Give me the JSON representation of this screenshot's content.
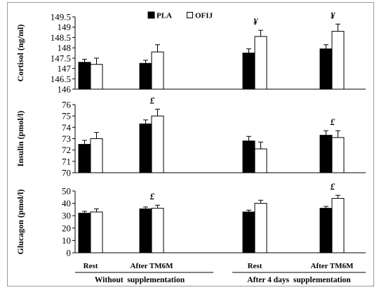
{
  "chart_data": {
    "type": "bar",
    "legend": {
      "placement": "top-center",
      "entries": [
        {
          "name": "PLA",
          "fill": "#000000"
        },
        {
          "name": "OFIJ",
          "fill": "#ffffff"
        }
      ]
    },
    "categories": [
      "Rest",
      "After TM6M",
      "Rest",
      "After TM6M"
    ],
    "groups": [
      "Without  supplementation",
      "After 4 days  supplementation"
    ],
    "colors": {
      "pla": "#000000",
      "ofij": "#ffffff",
      "stroke": "#000000"
    },
    "panels": [
      {
        "ylabel": "Cortisol (ng/ml)",
        "ylim": [
          146,
          149.5
        ],
        "ticks": [
          "146",
          "146.5",
          "147",
          "147.5",
          "148",
          "148.5",
          "149",
          "149.5"
        ],
        "series": [
          {
            "name": "PLA",
            "values": [
              147.3,
              147.25,
              147.75,
              147.95
            ],
            "errors": [
              0.15,
              0.15,
              0.2,
              0.2
            ]
          },
          {
            "name": "OFIJ",
            "values": [
              147.2,
              147.8,
              148.55,
              148.8
            ],
            "errors": [
              0.3,
              0.35,
              0.3,
              0.35
            ]
          }
        ],
        "markers": [
          {
            "text": "¥",
            "category": 2
          },
          {
            "text": "¥",
            "category": 3
          }
        ]
      },
      {
        "ylabel": "Insulin  (pmol/l)",
        "ylim": [
          70,
          76
        ],
        "ticks": [
          "70",
          "71",
          "72",
          "73",
          "74",
          "75",
          "76"
        ],
        "series": [
          {
            "name": "PLA",
            "values": [
              72.5,
              74.3,
              72.8,
              73.3
            ],
            "errors": [
              0.35,
              0.35,
              0.4,
              0.4
            ]
          },
          {
            "name": "OFIJ",
            "values": [
              73.0,
              75.0,
              72.1,
              73.1
            ],
            "errors": [
              0.55,
              0.6,
              0.6,
              0.6
            ]
          }
        ],
        "markers": [
          {
            "text": "£",
            "category": 1
          },
          {
            "text": "£",
            "category": 3
          }
        ]
      },
      {
        "ylabel": "Glucagon (pmol/l)",
        "ylim": [
          0,
          50
        ],
        "ticks": [
          "0",
          "10",
          "20",
          "30",
          "40",
          "50"
        ],
        "series": [
          {
            "name": "PLA",
            "values": [
              32,
              35.5,
              33,
              36
            ],
            "errors": [
              1.5,
              1.5,
              1.5,
              1.5
            ]
          },
          {
            "name": "OFIJ",
            "values": [
              33,
              36,
              40,
              44
            ],
            "errors": [
              2.5,
              2.5,
              2.5,
              2.5
            ]
          }
        ],
        "markers": [
          {
            "text": "£",
            "category": 1
          },
          {
            "text": "£",
            "category": 3
          }
        ]
      }
    ]
  }
}
